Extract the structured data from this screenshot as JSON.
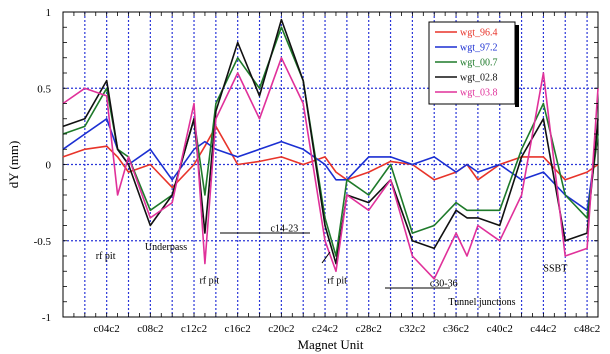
{
  "chart_data": {
    "type": "line",
    "title": "",
    "xlabel": "Magnet Unit",
    "ylabel": "dY (mm)",
    "xlim": [
      0,
      49
    ],
    "ylim": [
      -1,
      1
    ],
    "grid": true,
    "legend_position": "top-right",
    "x_ticks": [
      {
        "x": 4,
        "label": "c04c2"
      },
      {
        "x": 8,
        "label": "c08c2"
      },
      {
        "x": 12,
        "label": "c12c2"
      },
      {
        "x": 16,
        "label": "c16c2"
      },
      {
        "x": 20,
        "label": "c20c2"
      },
      {
        "x": 24,
        "label": "c24c2"
      },
      {
        "x": 28,
        "label": "c28c2"
      },
      {
        "x": 32,
        "label": "c32c2"
      },
      {
        "x": 36,
        "label": "c36c2"
      },
      {
        "x": 40,
        "label": "c40c2"
      },
      {
        "x": 44,
        "label": "c44c2"
      },
      {
        "x": 48,
        "label": "c48c2"
      }
    ],
    "y_ticks": [
      {
        "y": 1,
        "label": "1"
      },
      {
        "y": 0.5,
        "label": "0.5"
      },
      {
        "y": 0,
        "label": "0"
      },
      {
        "y": -0.5,
        "label": "-0.5"
      },
      {
        "y": -1,
        "label": "-1"
      }
    ],
    "series": [
      {
        "name": "wgt_96.4",
        "color": "#e8342a",
        "x": [
          0,
          2,
          4,
          5,
          6,
          8,
          10,
          12,
          13,
          14,
          16,
          18,
          20,
          22,
          24,
          25,
          26,
          28,
          30,
          32,
          34,
          36,
          37,
          38,
          40,
          42,
          44,
          46,
          48,
          49
        ],
        "y": [
          0.05,
          0.1,
          0.12,
          0.05,
          -0.05,
          0.0,
          -0.15,
          0.0,
          0.12,
          0.25,
          0.0,
          0.02,
          0.05,
          0.0,
          0.05,
          -0.05,
          -0.1,
          -0.05,
          0.02,
          0.0,
          -0.1,
          -0.05,
          0.0,
          -0.1,
          0.0,
          0.05,
          0.05,
          -0.1,
          -0.05,
          0.0
        ]
      },
      {
        "name": "wgt_97.2",
        "color": "#1b2fd2",
        "x": [
          0,
          2,
          4,
          5,
          6,
          8,
          10,
          12,
          13,
          14,
          16,
          18,
          20,
          22,
          24,
          25,
          26,
          28,
          30,
          32,
          34,
          36,
          37,
          38,
          40,
          42,
          44,
          46,
          48,
          49
        ],
        "y": [
          0.1,
          0.2,
          0.3,
          0.1,
          0.0,
          0.1,
          -0.1,
          0.1,
          0.15,
          0.1,
          0.05,
          0.1,
          0.15,
          0.1,
          0.0,
          -0.1,
          -0.1,
          0.05,
          0.05,
          0.0,
          0.05,
          -0.05,
          0.0,
          -0.05,
          0.0,
          -0.1,
          -0.05,
          -0.2,
          -0.3,
          0.2
        ]
      },
      {
        "name": "wgt_00.7",
        "color": "#1e7a2a",
        "x": [
          0,
          2,
          4,
          5,
          6,
          8,
          10,
          12,
          13,
          14,
          16,
          18,
          20,
          22,
          24,
          25,
          26,
          28,
          30,
          32,
          34,
          36,
          37,
          38,
          40,
          42,
          44,
          46,
          48,
          49
        ],
        "y": [
          0.2,
          0.25,
          0.5,
          0.1,
          0.05,
          -0.3,
          -0.2,
          0.3,
          -0.2,
          0.4,
          0.7,
          0.5,
          0.9,
          0.55,
          -0.35,
          -0.6,
          -0.1,
          -0.2,
          0.0,
          -0.45,
          -0.4,
          -0.25,
          -0.3,
          -0.3,
          -0.3,
          0.1,
          0.4,
          -0.2,
          -0.35,
          0.2
        ]
      },
      {
        "name": "wgt_02.8",
        "color": "#111111",
        "x": [
          0,
          2,
          4,
          5,
          6,
          8,
          10,
          12,
          13,
          14,
          16,
          18,
          20,
          22,
          24,
          25,
          26,
          28,
          30,
          32,
          34,
          36,
          37,
          38,
          40,
          42,
          44,
          46,
          48,
          49
        ],
        "y": [
          0.25,
          0.3,
          0.55,
          0.1,
          0.0,
          -0.4,
          -0.2,
          0.3,
          -0.45,
          0.35,
          0.8,
          0.45,
          0.95,
          0.55,
          -0.4,
          -0.65,
          -0.2,
          -0.25,
          -0.1,
          -0.5,
          -0.55,
          -0.3,
          -0.35,
          -0.35,
          -0.4,
          0.05,
          0.3,
          -0.5,
          -0.45,
          0.3
        ]
      },
      {
        "name": "wgt_03.8",
        "color": "#e0319a",
        "x": [
          0,
          2,
          4,
          5,
          6,
          8,
          10,
          12,
          13,
          14,
          16,
          18,
          20,
          22,
          24,
          25,
          26,
          28,
          30,
          32,
          34,
          36,
          37,
          38,
          40,
          42,
          44,
          46,
          48,
          49
        ],
        "y": [
          0.4,
          0.5,
          0.45,
          -0.2,
          0.05,
          -0.35,
          -0.25,
          0.4,
          -0.65,
          0.3,
          0.6,
          0.3,
          0.7,
          0.4,
          -0.5,
          -0.7,
          -0.2,
          -0.3,
          -0.1,
          -0.6,
          -0.75,
          -0.45,
          -0.6,
          -0.4,
          -0.5,
          -0.2,
          0.6,
          -0.6,
          -0.55,
          0.5
        ]
      }
    ],
    "annotations": [
      {
        "text": "rf pit",
        "x": 3,
        "y": -0.62
      },
      {
        "text": "Underpass",
        "x": 7.5,
        "y": -0.56
      },
      {
        "text": "rf pit",
        "x": 12.5,
        "y": -0.78
      },
      {
        "text": "c14-23",
        "x": 19,
        "y": -0.44
      },
      {
        "text": "rf pit",
        "x": 24.2,
        "y": -0.78
      },
      {
        "text": "c30-36",
        "x": 33.6,
        "y": -0.8
      },
      {
        "text": "Tunnel junctions",
        "x": 35.3,
        "y": -0.92
      },
      {
        "text": "SSBT",
        "x": 44,
        "y": -0.7
      }
    ]
  }
}
